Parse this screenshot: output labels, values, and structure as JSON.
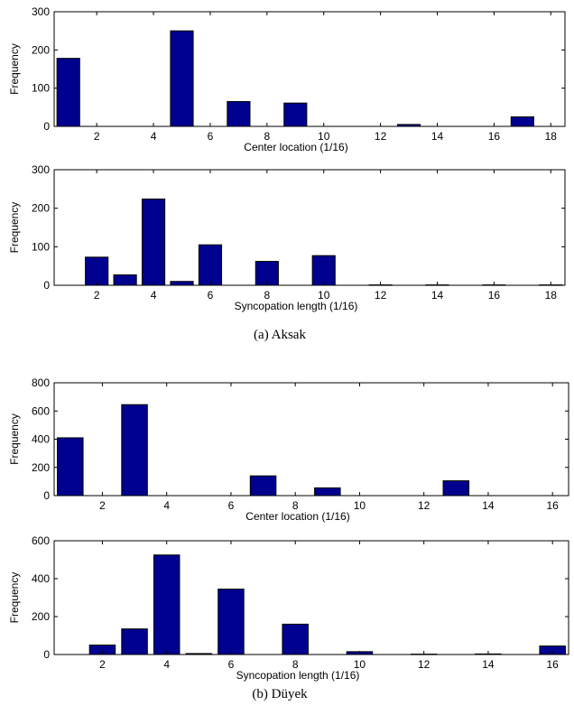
{
  "captions": [
    "(a) Aksak",
    "(b) Düyek"
  ],
  "colors": {
    "bar": "#00008f"
  },
  "chart_data": [
    {
      "type": "bar",
      "xlabel": "Center location (1/16)",
      "ylabel": "Frequency",
      "xlim": [
        0.5,
        18.5
      ],
      "ylim": [
        0,
        300
      ],
      "xticks": [
        2,
        4,
        6,
        8,
        10,
        12,
        14,
        16,
        18
      ],
      "yticks": [
        0,
        100,
        200,
        300
      ],
      "x": [
        1,
        5,
        7,
        9,
        13,
        17
      ],
      "values": [
        178,
        250,
        65,
        61,
        5,
        25
      ]
    },
    {
      "type": "bar",
      "xlabel": "Syncopation length (1/16)",
      "ylabel": "Frequency",
      "xlim": [
        0.5,
        18.5
      ],
      "ylim": [
        0,
        300
      ],
      "xticks": [
        2,
        4,
        6,
        8,
        10,
        12,
        14,
        16,
        18
      ],
      "yticks": [
        0,
        100,
        200,
        300
      ],
      "x": [
        2,
        3,
        4,
        5,
        6,
        8,
        10,
        12,
        14,
        16,
        18
      ],
      "values": [
        73,
        27,
        224,
        10,
        105,
        62,
        77,
        1,
        1,
        1,
        1
      ]
    },
    {
      "type": "bar",
      "xlabel": "Center location (1/16)",
      "ylabel": "Frequency",
      "xlim": [
        0.5,
        16.5
      ],
      "ylim": [
        0,
        800
      ],
      "xticks": [
        2,
        4,
        6,
        8,
        10,
        12,
        14,
        16
      ],
      "yticks": [
        0,
        200,
        400,
        600,
        800
      ],
      "x": [
        1,
        3,
        7,
        9,
        13
      ],
      "values": [
        410,
        645,
        140,
        55,
        105
      ]
    },
    {
      "type": "bar",
      "xlabel": "Syncopation length (1/16)",
      "ylabel": "Frequency",
      "xlim": [
        0.5,
        16.5
      ],
      "ylim": [
        0,
        600
      ],
      "xticks": [
        2,
        4,
        6,
        8,
        10,
        12,
        14,
        16
      ],
      "yticks": [
        0,
        200,
        400,
        600
      ],
      "x": [
        2,
        3,
        4,
        5,
        6,
        8,
        10,
        12,
        14,
        16
      ],
      "values": [
        50,
        135,
        525,
        5,
        345,
        160,
        15,
        2,
        3,
        45
      ]
    }
  ]
}
